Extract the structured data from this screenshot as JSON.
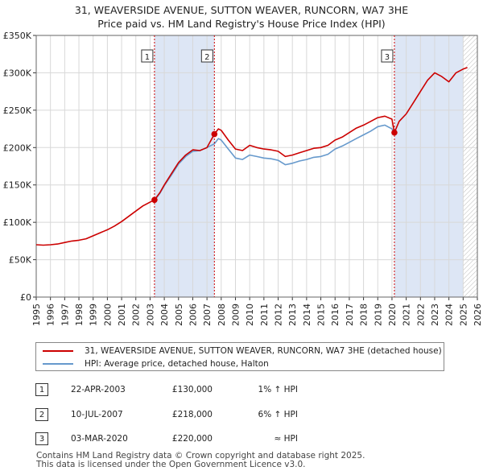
{
  "title": {
    "line1": "31, WEAVERSIDE AVENUE, SUTTON WEAVER, RUNCORN, WA7 3HE",
    "line2": "Price paid vs. HM Land Registry's House Price Index (HPI)"
  },
  "colors": {
    "price_line": "#cc0000",
    "hpi_line": "#6699cc",
    "shade": "#dde6f5",
    "marker": "#cc0000"
  },
  "legend": {
    "price_label": "31, WEAVERSIDE AVENUE, SUTTON WEAVER, RUNCORN, WA7 3HE (detached house)",
    "hpi_label": "HPI: Average price, detached house, Halton"
  },
  "transactions": [
    {
      "num": "1",
      "date": "22-APR-2003",
      "price": "£130,000",
      "hpi": "1% ↑ HPI"
    },
    {
      "num": "2",
      "date": "10-JUL-2007",
      "price": "£218,000",
      "hpi": "6% ↑ HPI"
    },
    {
      "num": "3",
      "date": "03-MAR-2020",
      "price": "£220,000",
      "hpi": "≈ HPI"
    }
  ],
  "footer": {
    "line1": "Contains HM Land Registry data © Crown copyright and database right 2025.",
    "line2": "This data is licensed under the Open Government Licence v3.0."
  },
  "chart_data": {
    "type": "line",
    "title": "31, WEAVERSIDE AVENUE, SUTTON WEAVER, RUNCORN, WA7 3HE — Price paid vs. HM Land Registry's House Price Index (HPI)",
    "xlabel": "",
    "ylabel": "",
    "xlim": [
      1995,
      2026
    ],
    "ylim": [
      0,
      350000
    ],
    "y_ticks": [
      0,
      50000,
      100000,
      150000,
      200000,
      250000,
      300000,
      350000
    ],
    "y_tick_labels": [
      "£0",
      "£50K",
      "£100K",
      "£150K",
      "£200K",
      "£250K",
      "£300K",
      "£350K"
    ],
    "x_ticks": [
      1995,
      1996,
      1997,
      1998,
      1999,
      2000,
      2001,
      2002,
      2003,
      2004,
      2005,
      2006,
      2007,
      2008,
      2009,
      2010,
      2011,
      2012,
      2013,
      2014,
      2015,
      2016,
      2017,
      2018,
      2019,
      2020,
      2021,
      2022,
      2023,
      2024,
      2025,
      2026
    ],
    "shaded_periods": [
      [
        2003.31,
        2007.52
      ],
      [
        2020.17,
        2025.0
      ]
    ],
    "hatched_from": 2025.0,
    "series": [
      {
        "name": "31, WEAVERSIDE AVENUE, SUTTON WEAVER, RUNCORN, WA7 3HE (detached house)",
        "color": "#cc0000",
        "x": [
          1995,
          1995.5,
          1996,
          1996.5,
          1997,
          1997.5,
          1998,
          1998.5,
          1999,
          1999.5,
          2000,
          2000.5,
          2001,
          2001.5,
          2002,
          2002.5,
          2003,
          2003.31,
          2003.7,
          2004,
          2004.5,
          2005,
          2005.5,
          2006,
          2006.5,
          2007,
          2007.52,
          2007.8,
          2008,
          2008.5,
          2009,
          2009.5,
          2010,
          2010.5,
          2011,
          2011.5,
          2012,
          2012.5,
          2013,
          2013.5,
          2014,
          2014.5,
          2015,
          2015.5,
          2016,
          2016.5,
          2017,
          2017.5,
          2018,
          2018.5,
          2019,
          2019.5,
          2020.0,
          2020.17,
          2020.5,
          2021,
          2021.5,
          2022,
          2022.5,
          2023,
          2023.5,
          2024,
          2024.5,
          2025,
          2025.3
        ],
        "values": [
          70000,
          69500,
          70000,
          71000,
          73000,
          75000,
          76000,
          78000,
          82000,
          86000,
          90000,
          95000,
          101000,
          108000,
          115000,
          122000,
          127000,
          130000,
          140000,
          150000,
          165000,
          180000,
          190000,
          197000,
          196000,
          200000,
          218000,
          225000,
          223000,
          210000,
          198000,
          196000,
          203000,
          200000,
          198000,
          197000,
          195000,
          188000,
          190000,
          193000,
          196000,
          199000,
          200000,
          203000,
          210000,
          214000,
          220000,
          226000,
          230000,
          235000,
          240000,
          242000,
          238000,
          220000,
          235000,
          245000,
          260000,
          275000,
          290000,
          300000,
          295000,
          288000,
          300000,
          305000,
          307000
        ]
      },
      {
        "name": "HPI: Average price, detached house, Halton",
        "color": "#6699cc",
        "x": [
          2003.31,
          2003.7,
          2004,
          2004.5,
          2005,
          2005.5,
          2006,
          2006.5,
          2007,
          2007.52,
          2007.8,
          2008,
          2008.5,
          2009,
          2009.5,
          2010,
          2010.5,
          2011,
          2011.5,
          2012,
          2012.5,
          2013,
          2013.5,
          2014,
          2014.5,
          2015,
          2015.5,
          2016,
          2016.5,
          2017,
          2017.5,
          2018,
          2018.5,
          2019,
          2019.5,
          2020.0,
          2020.17
        ],
        "values": [
          129000,
          139000,
          149000,
          163000,
          178000,
          188000,
          195000,
          196000,
          200000,
          205000,
          212000,
          210000,
          198000,
          186000,
          184000,
          190000,
          188000,
          186000,
          185000,
          183000,
          177000,
          179000,
          182000,
          184000,
          187000,
          188000,
          191000,
          198000,
          202000,
          207000,
          212000,
          217000,
          222000,
          228000,
          230000,
          225000,
          220000
        ]
      }
    ],
    "markers": [
      {
        "label": "1",
        "x": 2003.31,
        "y": 130000
      },
      {
        "label": "2",
        "x": 2007.52,
        "y": 218000
      },
      {
        "label": "3",
        "x": 2020.17,
        "y": 220000
      }
    ]
  }
}
